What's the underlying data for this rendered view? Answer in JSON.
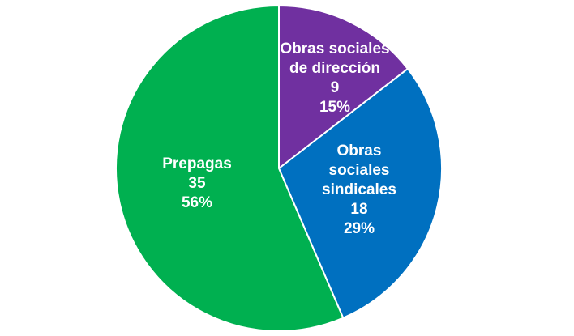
{
  "chart_data": {
    "type": "pie",
    "title": "",
    "slices": [
      {
        "label_lines": [
          "Obras sociales",
          "de dirección"
        ],
        "value": 9,
        "value_label": "9",
        "percent_label": "15%",
        "color": "#7030a0"
      },
      {
        "label_lines": [
          "Obras",
          "sociales",
          "sindicales"
        ],
        "value": 18,
        "value_label": "18",
        "percent_label": "29%",
        "color": "#0070c0"
      },
      {
        "label_lines": [
          "Prepagas"
        ],
        "value": 35,
        "value_label": "35",
        "percent_label": "56%",
        "color": "#00b050"
      }
    ],
    "start": "top",
    "direction": "clockwise",
    "legend": "none"
  }
}
